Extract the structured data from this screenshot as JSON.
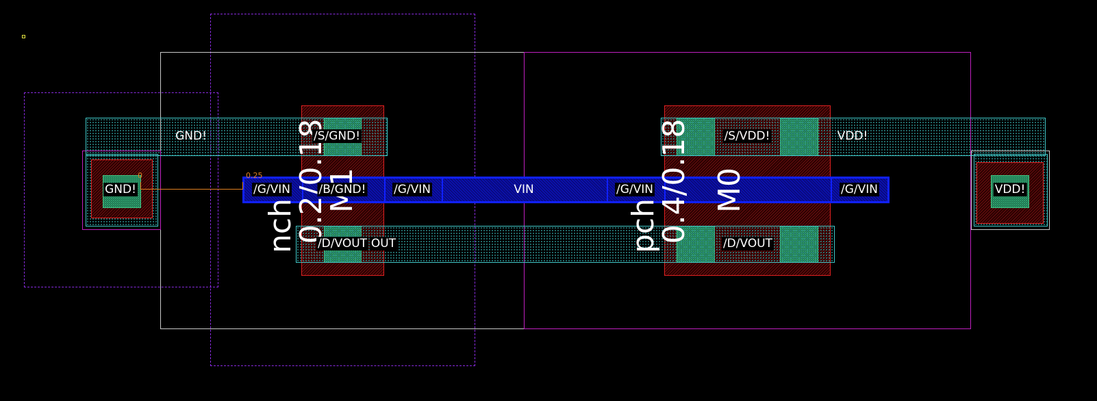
{
  "colors": {
    "metal": "#40c8c8",
    "poly": "#1020ff",
    "diffusion": "#e02020",
    "contact": "#40c080",
    "well": "#c020c0",
    "ruler": "#e08020"
  },
  "ruler": {
    "start": "0",
    "end": "0.25"
  },
  "nmos": {
    "model": "nch",
    "size": "0.2/0.18",
    "instance": "M1",
    "source": "/S/GND!",
    "bulk": "/B/GND!",
    "drain": "/D/VOUT"
  },
  "pmos": {
    "model": "pch",
    "size": "0.4/0.18",
    "instance": "M0",
    "source": "/S/VDD!",
    "drain": "/D/VOUT"
  },
  "labels": {
    "gnd_rail": "GND!",
    "vdd_rail": "VDD!",
    "gnd_tap": "GND!",
    "vdd_tap": "VDD!",
    "vin": "VIN",
    "gate1": "/G/VIN",
    "gate2": "/G/VIN",
    "gate3": "/G/VIN",
    "gate4": "/G/VIN",
    "out_extra": "OUT"
  }
}
